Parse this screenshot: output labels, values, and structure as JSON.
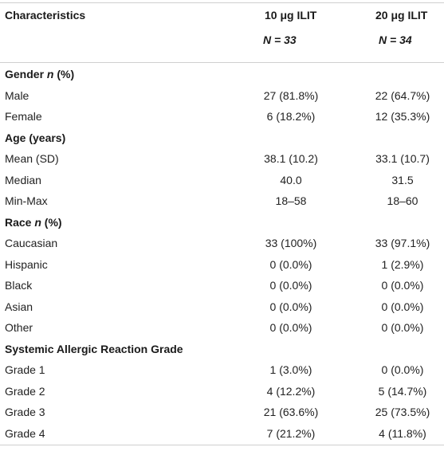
{
  "header": {
    "characteristics": "Characteristics",
    "col1_title": "10 μg ILIT",
    "col1_n": "N = 33",
    "col2_title": "20 μg ILIT",
    "col2_n": "N = 34"
  },
  "sections": [
    {
      "title": "Gender n (%)",
      "rows": [
        {
          "label": "Male",
          "c1": "27 (81.8%)",
          "c2": "22 (64.7%)"
        },
        {
          "label": "Female",
          "c1": "6 (18.2%)",
          "c2": "12 (35.3%)"
        }
      ]
    },
    {
      "title": "Age (years)",
      "rows": [
        {
          "label": "Mean (SD)",
          "c1": "38.1 (10.2)",
          "c2": "33.1 (10.7)"
        },
        {
          "label": "Median",
          "c1": "40.0",
          "c2": "31.5"
        },
        {
          "label": "Min-Max",
          "c1": "18–58",
          "c2": "18–60"
        }
      ]
    },
    {
      "title": "Race n (%)",
      "rows": [
        {
          "label": "Caucasian",
          "c1": "33 (100%)",
          "c2": "33 (97.1%)"
        },
        {
          "label": "Hispanic",
          "c1": "0 (0.0%)",
          "c2": "1 (2.9%)"
        },
        {
          "label": "Black",
          "c1": "0 (0.0%)",
          "c2": "0 (0.0%)"
        },
        {
          "label": "Asian",
          "c1": "0 (0.0%)",
          "c2": "0 (0.0%)"
        },
        {
          "label": "Other",
          "c1": "0 (0.0%)",
          "c2": "0 (0.0%)"
        }
      ]
    },
    {
      "title": "Systemic Allergic Reaction Grade",
      "rows": [
        {
          "label": "Grade 1",
          "c1": "1 (3.0%)",
          "c2": "0 (0.0%)"
        },
        {
          "label": "Grade 2",
          "c1": "4 (12.2%)",
          "c2": "5 (14.7%)"
        },
        {
          "label": "Grade 3",
          "c1": "21 (63.6%)",
          "c2": "25 (73.5%)"
        },
        {
          "label": "Grade 4",
          "c1": "7 (21.2%)",
          "c2": "4 (11.8%)"
        }
      ]
    }
  ]
}
